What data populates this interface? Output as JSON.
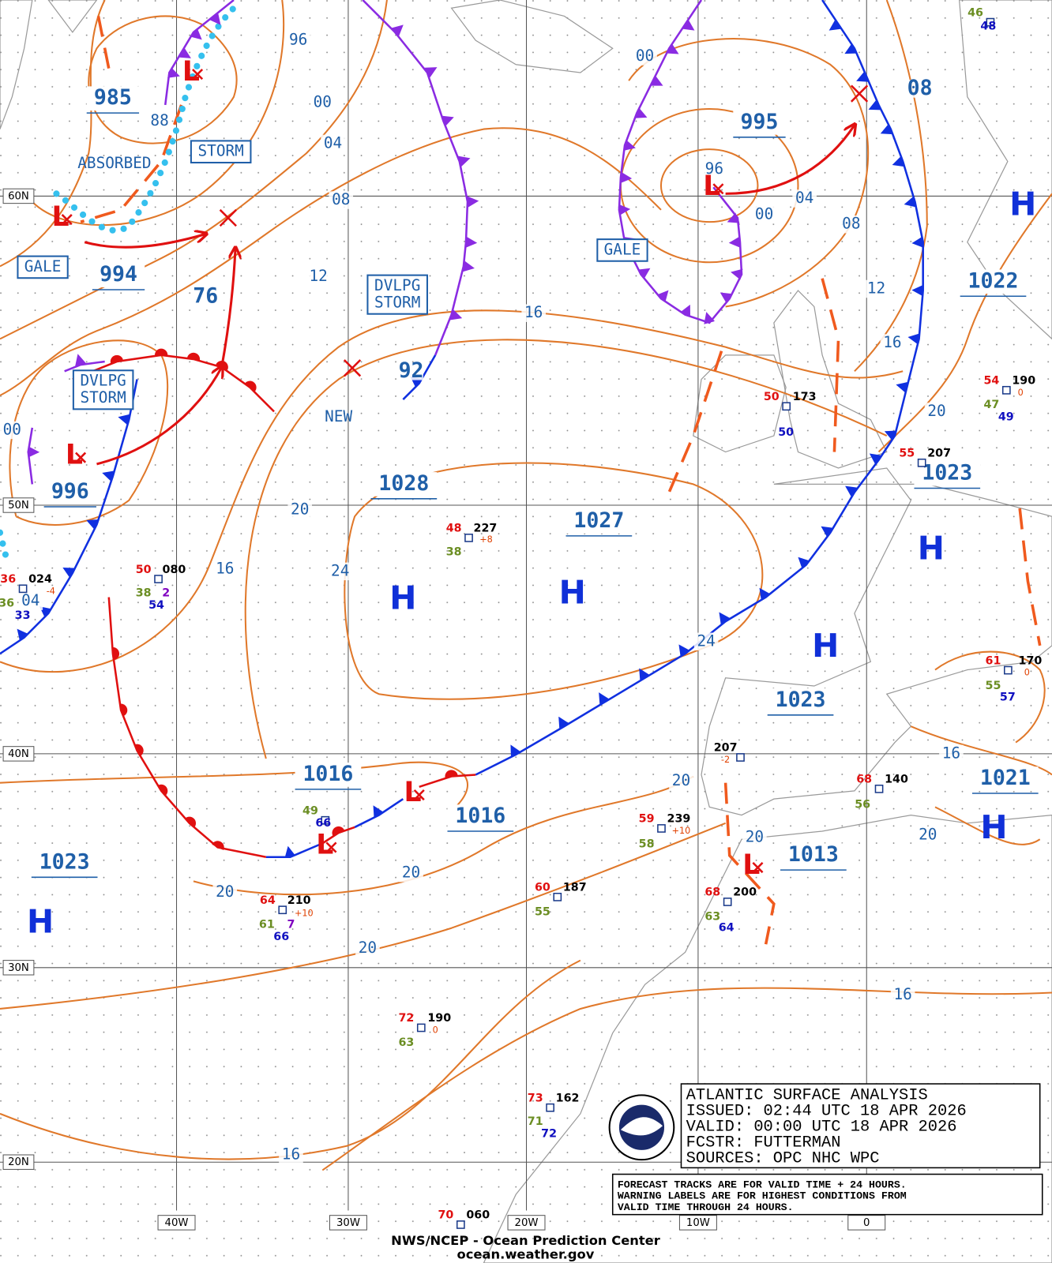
{
  "lat_labels": [
    "60N",
    "50N",
    "40N",
    "30N",
    "20N"
  ],
  "lon_labels": [
    "40W",
    "30W",
    "20W",
    "10W",
    "0"
  ],
  "isobar_labels": [
    "96",
    "00",
    "04",
    "08",
    "12",
    "16",
    "92",
    "88",
    "76",
    "20",
    "24",
    "16",
    "04",
    "00",
    "00",
    "96",
    "00",
    "04",
    "08",
    "08",
    "12",
    "16",
    "20",
    "24",
    "20",
    "16",
    "20",
    "20",
    "20",
    "20",
    "20",
    "16",
    "16"
  ],
  "pressure_labels": [
    "985",
    "994",
    "996",
    "1028",
    "1027",
    "995",
    "1023",
    "1022",
    "1023",
    "1021",
    "1013",
    "1016",
    "1016",
    "1023"
  ],
  "high_symbol": "H",
  "low_symbol": "L",
  "warnings": {
    "absorbed": "ABSORBED",
    "storm": "STORM",
    "gale_west": "GALE",
    "dvlpg_mid": [
      "DVLPG",
      "STORM"
    ],
    "dvlpg_west": [
      "DVLPG",
      "STORM"
    ],
    "gale_east": "GALE",
    "new": "NEW"
  },
  "stations": [
    [
      "50",
      "080",
      "38",
      "2",
      "54"
    ],
    [
      "48",
      "227",
      "+8",
      "38"
    ],
    [
      "36",
      "024",
      "-4",
      "36",
      "33"
    ],
    [
      "50",
      "173",
      "50"
    ],
    [
      "54",
      "190",
      "0",
      "47",
      "49"
    ],
    [
      "55",
      "207"
    ],
    [
      "61",
      "170",
      "0",
      "55",
      "57"
    ],
    [
      "207",
      "-2"
    ],
    [
      "68",
      "140",
      "56"
    ],
    [
      "59",
      "239",
      "+10",
      "58"
    ],
    [
      "49",
      "66"
    ],
    [
      "64",
      "210",
      "+10",
      "61",
      "7",
      "66"
    ],
    [
      "60",
      "187",
      "55"
    ],
    [
      "68",
      "200",
      "63",
      "64"
    ],
    [
      "72",
      "190",
      "0",
      "63"
    ],
    [
      "73",
      "162",
      "71",
      "72"
    ],
    [
      "70",
      "060"
    ],
    [
      "46",
      "48"
    ]
  ],
  "info_box": {
    "title": "ATLANTIC SURFACE ANALYSIS",
    "issued": "ISSUED: 02:44 UTC 18 APR 2026",
    "valid": "VALID:  00:00 UTC 18 APR 2026",
    "forecaster": "FCSTR:   FUTTERMAN",
    "sources": "SOURCES: OPC NHC WPC"
  },
  "notes": [
    "FORECAST TRACKS ARE FOR VALID TIME + 24 HOURS.",
    "WARNING LABELS ARE FOR HIGHEST CONDITIONS FROM",
    "VALID TIME THROUGH 24 HOURS."
  ],
  "footer": {
    "agency": "NWS/NCEP - Ocean Prediction Center",
    "url": "ocean.weather.gov"
  }
}
